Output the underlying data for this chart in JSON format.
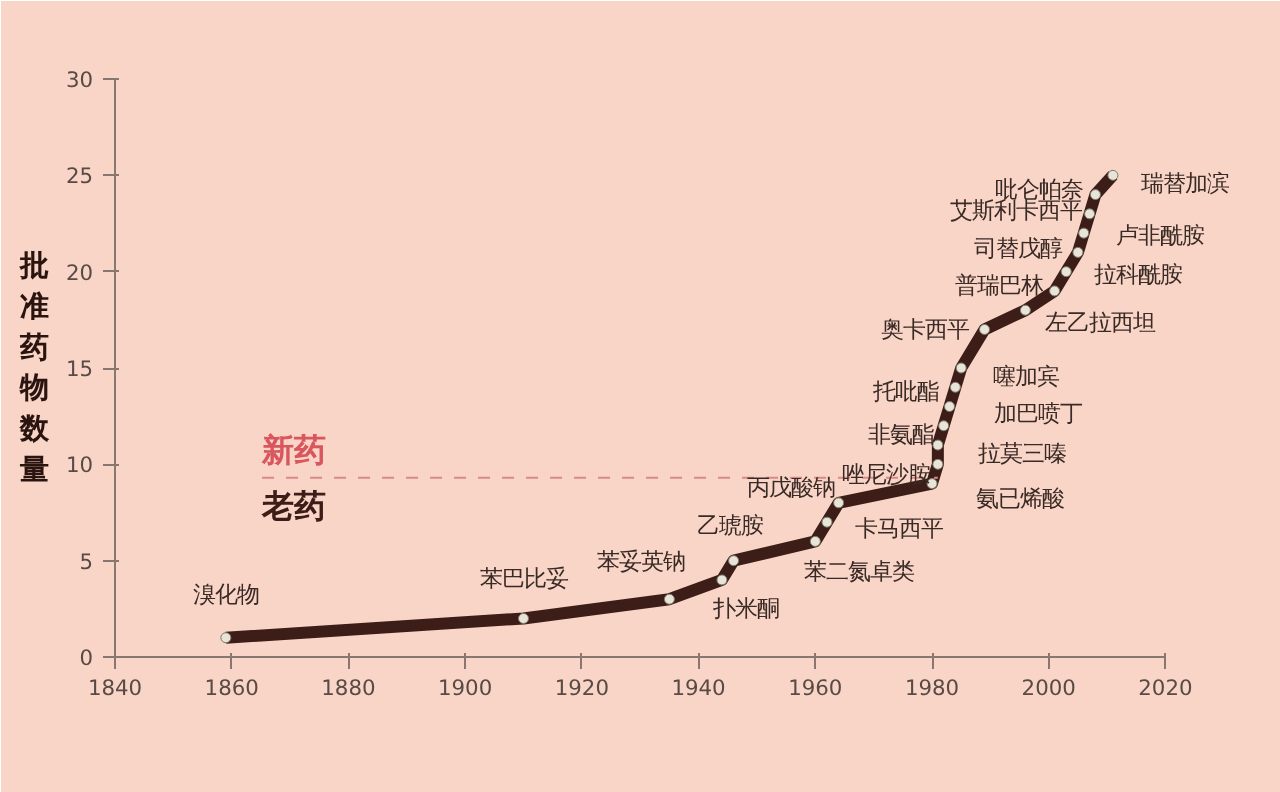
{
  "chart_data": {
    "type": "line",
    "ylabel": "批准药物数量",
    "x": [
      1859,
      1910,
      1935,
      1944,
      1946,
      1960,
      1962,
      1964,
      1980,
      1981,
      1981,
      1982,
      1983,
      1984,
      1985,
      1989,
      1996,
      2001,
      2003,
      2005,
      2006,
      2007,
      2008,
      2011
    ],
    "series": [
      {
        "color": "#3d1d17",
        "values": [
          1,
          2,
          3,
          4,
          5,
          6,
          7,
          8,
          9,
          10,
          11,
          12,
          13,
          14,
          15,
          17,
          18,
          19,
          20,
          21,
          22,
          23,
          24,
          25
        ]
      }
    ],
    "marker": "circle",
    "line_style": "solid",
    "xlim": [
      1840,
      2020
    ],
    "xticks": [
      1840,
      1860,
      1880,
      1900,
      1920,
      1940,
      1960,
      1980,
      2000,
      2020
    ],
    "ylim": [
      0,
      30
    ],
    "yticks": [
      0,
      5,
      10,
      15,
      20,
      25,
      30
    ],
    "grid": false,
    "ref_lines": [
      {
        "axis": "y",
        "value": 9.3,
        "label": null,
        "color": "#d98a86",
        "line_style": "dashed"
      }
    ],
    "annotations": [
      {
        "text": "溴化物",
        "x": 1859,
        "y": 1
      },
      {
        "text": "苯巴比妥",
        "x": 1910,
        "y": 2
      },
      {
        "text": "苯妥英钠",
        "x": 1935,
        "y": 3
      },
      {
        "text": "扑米酮",
        "x": 1944,
        "y": 4
      },
      {
        "text": "乙琥胺",
        "x": 1946,
        "y": 5
      },
      {
        "text": "苯二氮卓类",
        "x": 1960,
        "y": 6
      },
      {
        "text": "卡马西平",
        "x": 1962,
        "y": 7
      },
      {
        "text": "丙戊酸钠",
        "x": 1964,
        "y": 8
      },
      {
        "text": "氨已烯酸",
        "x": 1980,
        "y": 9
      },
      {
        "text": "唑尼沙胺",
        "x": 1981,
        "y": 10
      },
      {
        "text": "拉莫三嗪",
        "x": 1981,
        "y": 11
      },
      {
        "text": "非氨酯",
        "x": 1982,
        "y": 12
      },
      {
        "text": "加巴喷丁",
        "x": 1983,
        "y": 13
      },
      {
        "text": "托吡酯",
        "x": 1984,
        "y": 14
      },
      {
        "text": "噻加宾",
        "x": 1985,
        "y": 15
      },
      {
        "text": "奥卡西平",
        "x": 1989,
        "y": 17
      },
      {
        "text": "左乙拉西坦",
        "x": 1996,
        "y": 18
      },
      {
        "text": "普瑞巴林",
        "x": 2001,
        "y": 19
      },
      {
        "text": "拉科酰胺",
        "x": 2003,
        "y": 20
      },
      {
        "text": "司替戊醇",
        "x": 2005,
        "y": 21
      },
      {
        "text": "卢非酰胺",
        "x": 2006,
        "y": 22
      },
      {
        "text": "艾斯利卡西平",
        "x": 2007,
        "y": 23
      },
      {
        "text": "吡仑帕奈",
        "x": 2008,
        "y": 24
      },
      {
        "text": "瑞替加滨",
        "x": 2011,
        "y": 25
      },
      "新药",
      "老药"
    ]
  }
}
